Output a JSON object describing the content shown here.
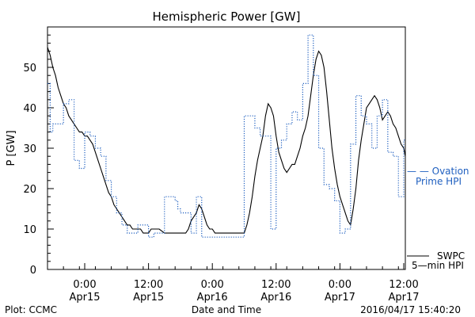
{
  "chart_data": {
    "type": "line",
    "title": "Hemispheric Power [GW]",
    "xlabel": "Date and Time",
    "ylabel": "P [GW]",
    "ylim": [
      0,
      60
    ],
    "yticks": [
      0,
      10,
      20,
      30,
      40,
      50
    ],
    "x_unit": "hours since 2016-04-14 00:00 UT",
    "xlim": [
      17,
      84.3
    ],
    "xticks": [
      {
        "x": 24,
        "time": "0:00",
        "date": "Apr15"
      },
      {
        "x": 36,
        "time": "12:00",
        "date": "Apr15"
      },
      {
        "x": 48,
        "time": "0:00",
        "date": "Apr16"
      },
      {
        "x": 60,
        "time": "12:00",
        "date": "Apr16"
      },
      {
        "x": 72,
        "time": "0:00",
        "date": "Apr17"
      },
      {
        "x": 84,
        "time": "12:00",
        "date": "Apr17"
      }
    ],
    "grid": false,
    "legend_position": "right",
    "series": [
      {
        "name": "SWPC 5-min HPI",
        "label_lines": [
          "SWPC",
          "5—min HPI"
        ],
        "color": "#000000",
        "style": "solid",
        "x": [
          17,
          17.5,
          18,
          18.5,
          19,
          19.5,
          20,
          20.5,
          21,
          21.5,
          22,
          22.5,
          23,
          23.5,
          24,
          24.5,
          25,
          25.5,
          26,
          26.5,
          27,
          27.5,
          28,
          28.5,
          29,
          29.5,
          30,
          30.5,
          31,
          31.5,
          32,
          32.5,
          33,
          33.5,
          34,
          34.5,
          35,
          35.5,
          36,
          36.5,
          37,
          37.5,
          38,
          39,
          40,
          41,
          42,
          43,
          43.5,
          44,
          44.5,
          45,
          45.5,
          46,
          46.5,
          47,
          47.5,
          48,
          48.5,
          49,
          49.5,
          50,
          50.5,
          51,
          52,
          53,
          54,
          54.5,
          55,
          55.5,
          56,
          56.5,
          57,
          57.5,
          58,
          58.5,
          59,
          59.5,
          60,
          60.5,
          61,
          61.5,
          62,
          62.5,
          63,
          63.5,
          64,
          64.5,
          65,
          65.5,
          66,
          66.5,
          67,
          67.5,
          68,
          68.5,
          69,
          69.5,
          70,
          70.5,
          71,
          71.5,
          72,
          72.5,
          73,
          73.5,
          74,
          74.5,
          75,
          75.5,
          76,
          76.5,
          77,
          77.5,
          78,
          78.5,
          79,
          79.5,
          80,
          80.5,
          81,
          81.5,
          82,
          82.5,
          83,
          83.5,
          84,
          84.3
        ],
        "values": [
          55,
          53,
          50,
          48,
          45,
          43,
          41,
          40,
          38,
          37,
          36,
          35,
          34,
          34,
          33,
          33,
          32,
          31,
          29,
          27,
          25,
          23,
          21,
          19,
          18,
          16,
          15,
          14,
          13,
          12,
          11,
          11,
          10,
          10,
          10,
          10,
          9,
          9,
          9,
          10,
          10,
          10,
          10,
          9,
          9,
          9,
          9,
          9,
          10,
          12,
          13,
          14,
          16,
          15,
          13,
          11,
          10,
          10,
          9,
          9,
          9,
          9,
          9,
          9,
          9,
          9,
          9,
          11,
          14,
          18,
          23,
          27,
          30,
          33,
          38,
          41,
          40,
          38,
          33,
          29,
          27,
          25,
          24,
          25,
          26,
          26,
          28,
          30,
          33,
          35,
          38,
          43,
          48,
          52,
          54,
          53,
          50,
          44,
          37,
          30,
          25,
          21,
          18,
          16,
          14,
          12,
          11,
          15,
          20,
          27,
          32,
          36,
          40,
          41,
          42,
          43,
          42,
          40,
          37,
          38,
          39,
          38,
          36,
          35,
          33,
          31,
          30,
          28
        ]
      },
      {
        "name": "Ovation Prime HPI",
        "label_lines": [
          "— — Ovation",
          "Prime HPI"
        ],
        "color": "#2060c0",
        "style": "dotted-steps",
        "x": [
          17,
          17.5,
          18,
          19,
          19.5,
          20,
          21,
          22,
          23,
          24,
          25,
          26,
          27,
          28,
          29,
          30,
          31,
          32,
          33,
          34,
          36,
          37,
          39,
          41,
          41.5,
          42,
          44,
          45,
          46,
          48,
          49,
          50,
          51,
          53,
          54,
          55,
          56,
          57,
          58,
          59,
          60,
          60.5,
          61,
          62,
          63,
          64,
          65,
          66,
          67,
          68,
          69,
          70,
          71,
          72,
          73,
          74,
          75,
          76,
          77,
          78,
          79,
          80,
          81,
          82,
          83,
          84
        ],
        "values": [
          46,
          34,
          36,
          36,
          36,
          41,
          42,
          27,
          25,
          34,
          33,
          30,
          28,
          22,
          18,
          14,
          11,
          9,
          9,
          11,
          8,
          9,
          18,
          17,
          15,
          14,
          9,
          18,
          8,
          8,
          8,
          8,
          8,
          8,
          38,
          38,
          35,
          33,
          33,
          10,
          30,
          30,
          32,
          36,
          39,
          37,
          46,
          58,
          48,
          30,
          21,
          20,
          17,
          9,
          10,
          31,
          43,
          38,
          36,
          30,
          38,
          42,
          29,
          28,
          18,
          32
        ]
      }
    ],
    "footer": {
      "left": "Plot: CCMC",
      "center": "Date and Time",
      "right": "2016/04/17  15:40:20"
    }
  }
}
